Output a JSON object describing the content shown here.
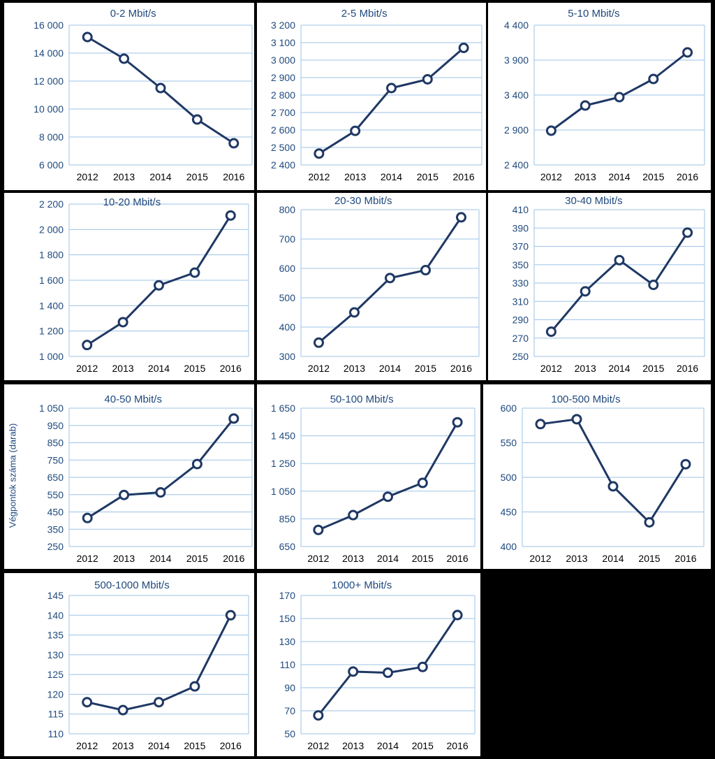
{
  "colors": {
    "line": "#1F3864",
    "marker_fill": "#ffffff",
    "grid": "#9DC3E6",
    "text": "#1F497D"
  },
  "ylabel": "Végpontok száma (darab)",
  "chart_data": [
    {
      "type": "line",
      "title": "0-2 Mbit/s",
      "categories": [
        "2012",
        "2013",
        "2014",
        "2015",
        "2016"
      ],
      "values": [
        15150,
        13600,
        11500,
        9250,
        7550
      ],
      "ylim": [
        6000,
        16000
      ],
      "yticks": [
        6000,
        8000,
        10000,
        12000,
        14000,
        16000
      ],
      "ytick_labels": [
        "6 000",
        "8 000",
        "10 000",
        "12 000",
        "14 000",
        "16 000"
      ],
      "grid": true
    },
    {
      "type": "line",
      "title": "2-5 Mbit/s",
      "categories": [
        "2012",
        "2013",
        "2014",
        "2015",
        "2016"
      ],
      "values": [
        2465,
        2595,
        2840,
        2890,
        3070
      ],
      "ylim": [
        2400,
        3200
      ],
      "yticks": [
        2400,
        2500,
        2600,
        2700,
        2800,
        2900,
        3000,
        3100,
        3200
      ],
      "ytick_labels": [
        "2 400",
        "2 500",
        "2 600",
        "2 700",
        "2 800",
        "2 900",
        "3 000",
        "3 100",
        "3 200"
      ],
      "grid": true
    },
    {
      "type": "line",
      "title": "5-10 Mbit/s",
      "categories": [
        "2012",
        "2013",
        "2014",
        "2015",
        "2016"
      ],
      "values": [
        2890,
        3250,
        3370,
        3630,
        4010
      ],
      "ylim": [
        2400,
        4400
      ],
      "yticks": [
        2400,
        2900,
        3400,
        3900,
        4400
      ],
      "ytick_labels": [
        "2 400",
        "2 900",
        "3 400",
        "3 900",
        "4 400"
      ],
      "grid": true
    },
    {
      "type": "line",
      "title": "10-20 Mbit/s",
      "categories": [
        "2012",
        "2013",
        "2014",
        "2015",
        "2016"
      ],
      "values": [
        1090,
        1270,
        1560,
        1660,
        2110
      ],
      "ylim": [
        1000,
        2200
      ],
      "yticks": [
        1000,
        1200,
        1400,
        1600,
        1800,
        2000,
        2200
      ],
      "ytick_labels": [
        "1 000",
        "1 200",
        "1 400",
        "1 600",
        "1 800",
        "2 000",
        "2 200"
      ],
      "grid": true
    },
    {
      "type": "line",
      "title": "20-30 Mbit/s",
      "categories": [
        "2012",
        "2013",
        "2014",
        "2015",
        "2016"
      ],
      "values": [
        347,
        450,
        567,
        594,
        774
      ],
      "ylim": [
        300,
        800
      ],
      "yticks": [
        300,
        400,
        500,
        600,
        700,
        800
      ],
      "ytick_labels": [
        "300",
        "400",
        "500",
        "600",
        "700",
        "800"
      ],
      "grid": true
    },
    {
      "type": "line",
      "title": "30-40 Mbit/s",
      "categories": [
        "2012",
        "2013",
        "2014",
        "2015",
        "2016"
      ],
      "values": [
        277,
        321,
        355,
        328,
        385
      ],
      "ylim": [
        250,
        410
      ],
      "yticks": [
        250,
        270,
        290,
        310,
        330,
        350,
        370,
        390,
        410
      ],
      "ytick_labels": [
        "250",
        "270",
        "290",
        "310",
        "330",
        "350",
        "370",
        "390",
        "410"
      ],
      "grid": true
    },
    {
      "type": "line",
      "title": "40-50 Mbit/s",
      "categories": [
        "2012",
        "2013",
        "2014",
        "2015",
        "2016"
      ],
      "values": [
        415,
        548,
        563,
        727,
        990
      ],
      "ylim": [
        250,
        1050
      ],
      "yticks": [
        250,
        350,
        450,
        550,
        650,
        750,
        850,
        950,
        1050
      ],
      "ytick_labels": [
        "250",
        "350",
        "450",
        "550",
        "650",
        "750",
        "850",
        "950",
        "1 050"
      ],
      "grid": true
    },
    {
      "type": "line",
      "title": "50-100 Mbit/s",
      "categories": [
        "2012",
        "2013",
        "2014",
        "2015",
        "2016"
      ],
      "values": [
        770,
        877,
        1010,
        1110,
        1548
      ],
      "ylim": [
        650,
        1650
      ],
      "yticks": [
        650,
        850,
        1050,
        1250,
        1450,
        1650
      ],
      "ytick_labels": [
        "650",
        "850",
        "1 050",
        "1 250",
        "1 450",
        "1 650"
      ],
      "grid": true
    },
    {
      "type": "line",
      "title": "100-500 Mbit/s",
      "categories": [
        "2012",
        "2013",
        "2014",
        "2015",
        "2016"
      ],
      "values": [
        577,
        584,
        487,
        435,
        519
      ],
      "ylim": [
        400,
        600
      ],
      "yticks": [
        400,
        450,
        500,
        550,
        600
      ],
      "ytick_labels": [
        "400",
        "450",
        "500",
        "550",
        "600"
      ],
      "grid": true
    },
    {
      "type": "line",
      "title": "500-1000 Mbit/s",
      "categories": [
        "2012",
        "2013",
        "2014",
        "2015",
        "2016"
      ],
      "values": [
        118,
        116,
        118,
        122,
        140
      ],
      "ylim": [
        110,
        145
      ],
      "yticks": [
        110,
        115,
        120,
        125,
        130,
        135,
        140,
        145
      ],
      "ytick_labels": [
        "110",
        "115",
        "120",
        "125",
        "130",
        "135",
        "140",
        "145"
      ],
      "grid": true
    },
    {
      "type": "line",
      "title": "1000+ Mbit/s",
      "categories": [
        "2012",
        "2013",
        "2014",
        "2015",
        "2016"
      ],
      "values": [
        66,
        104,
        103,
        108,
        153
      ],
      "ylim": [
        50,
        170
      ],
      "yticks": [
        50,
        70,
        90,
        110,
        130,
        150,
        170
      ],
      "ytick_labels": [
        "50",
        "70",
        "90",
        "110",
        "130",
        "150",
        "170"
      ],
      "grid": true
    }
  ]
}
